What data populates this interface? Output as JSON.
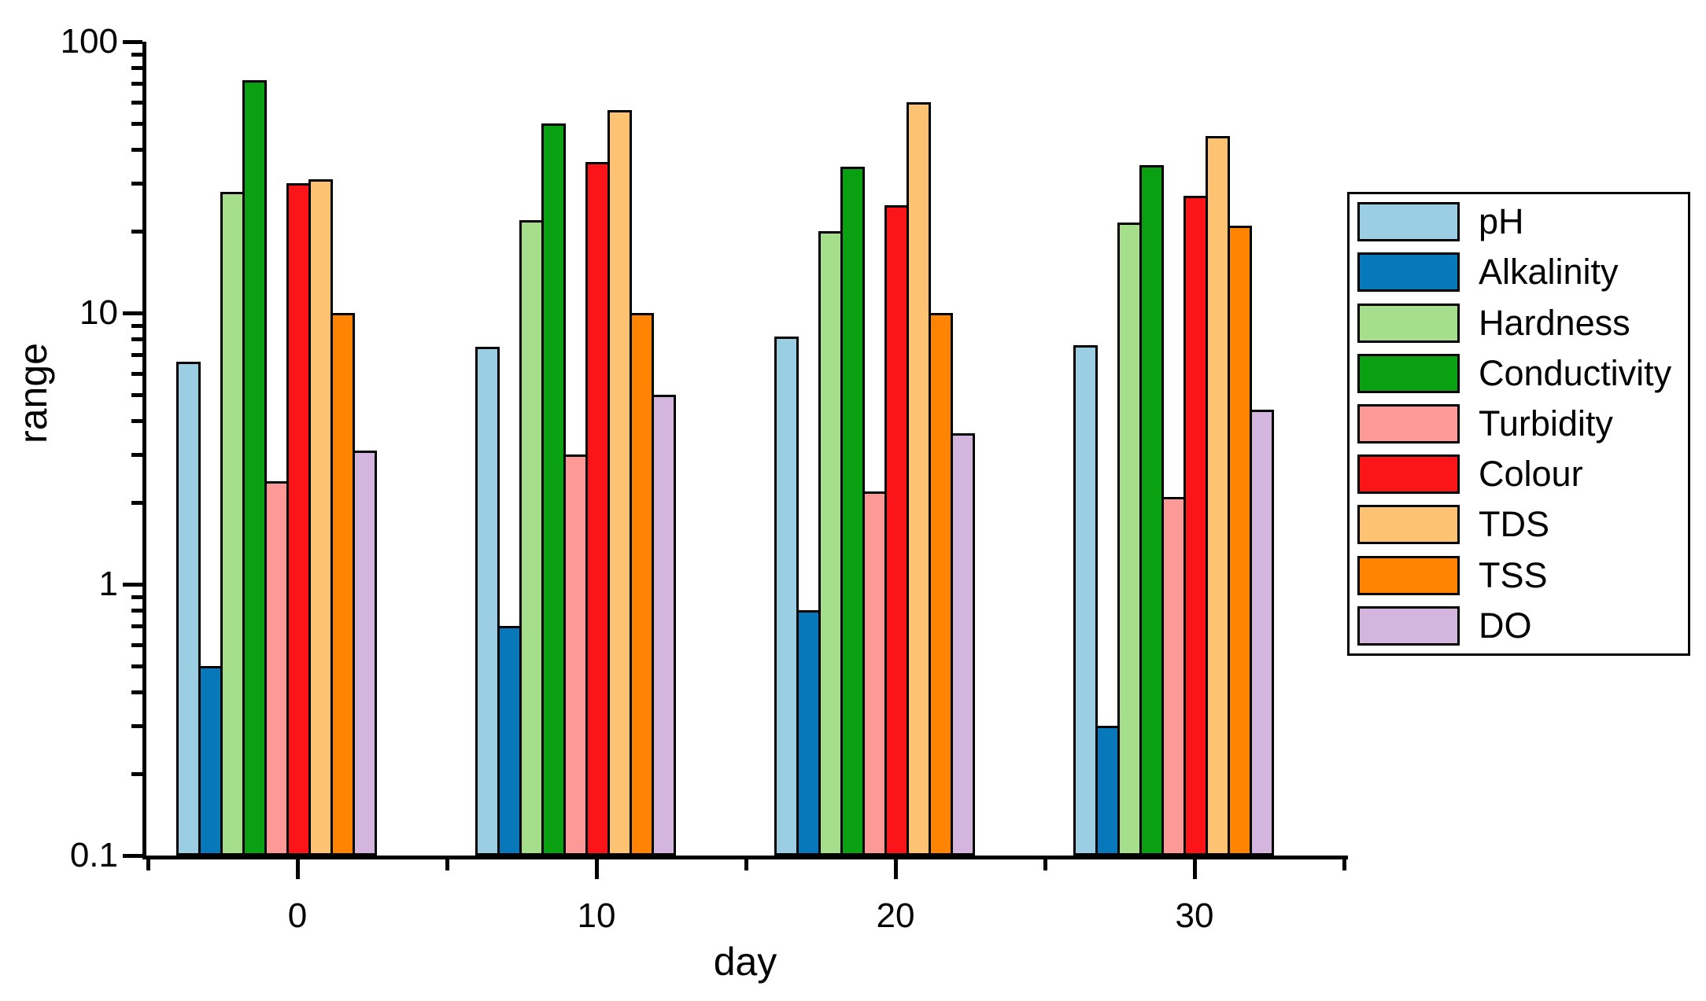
{
  "chart_data": {
    "type": "bar",
    "title": "",
    "xlabel": "day",
    "ylabel": "range",
    "yscale": "log",
    "ylim": [
      0.1,
      100
    ],
    "y_tick_labels": [
      "100",
      "10",
      "1",
      "0.1"
    ],
    "y_tick_values": [
      100,
      10,
      1,
      0.1
    ],
    "categories": [
      "0",
      "10",
      "20",
      "30"
    ],
    "grid": "off",
    "legend_position": "right",
    "series": [
      {
        "name": "pH",
        "color": "#9CCEE3",
        "values": [
          6.6,
          7.5,
          8.2,
          7.6
        ]
      },
      {
        "name": "Alkalinity",
        "color": "#0778B9",
        "values": [
          0.5,
          0.7,
          0.8,
          0.3
        ]
      },
      {
        "name": "Hardness",
        "color": "#A5DF8C",
        "values": [
          28,
          22,
          20,
          21.5
        ]
      },
      {
        "name": "Conductivity",
        "color": "#09A011",
        "values": [
          72,
          50,
          34.5,
          35
        ]
      },
      {
        "name": "Turbidity",
        "color": "#FD9A98",
        "values": [
          2.4,
          3.0,
          2.2,
          2.1
        ]
      },
      {
        "name": "Colour",
        "color": "#FB1418",
        "values": [
          30,
          36,
          25,
          27
        ]
      },
      {
        "name": "TDS",
        "color": "#FDC272",
        "values": [
          31,
          56,
          60,
          45
        ]
      },
      {
        "name": "TSS",
        "color": "#FF8402",
        "values": [
          10,
          10,
          10,
          21
        ]
      },
      {
        "name": "DO",
        "color": "#D3B5DD",
        "values": [
          3.1,
          5.0,
          3.6,
          4.4
        ]
      }
    ]
  }
}
